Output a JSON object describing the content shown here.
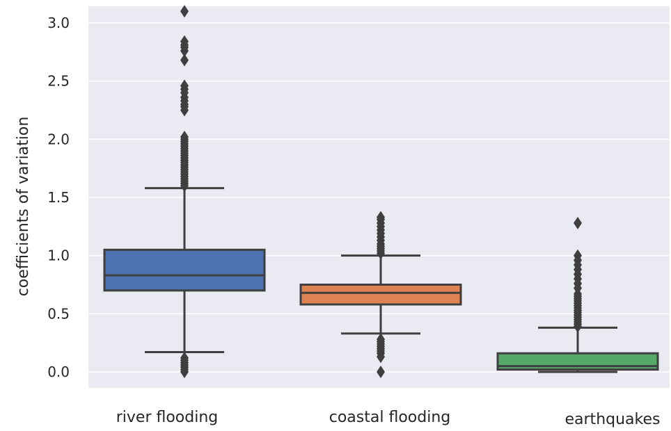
{
  "chart_data": {
    "type": "box",
    "title": "",
    "xlabel": "",
    "ylabel": "coefficients of variation",
    "ylim": [
      -0.15,
      3.25
    ],
    "yticks": [
      0.0,
      0.5,
      1.0,
      1.5,
      2.0,
      2.5,
      3.0
    ],
    "ytick_labels": [
      "0.0",
      "0.5",
      "1.0",
      "1.5",
      "2.0",
      "2.5",
      "3.0"
    ],
    "grid": true,
    "categories": [
      "river flooding",
      "coastal flooding",
      "earthquakes"
    ],
    "boxes": [
      {
        "category": "river flooding",
        "color": "#4c72b0",
        "whisker_low": 0.17,
        "q1": 0.7,
        "median": 0.83,
        "q3": 1.05,
        "whisker_high": 1.58,
        "outliers": [
          0.0,
          0.02,
          0.04,
          0.06,
          0.08,
          0.1,
          0.12,
          1.6,
          1.62,
          1.64,
          1.66,
          1.68,
          1.7,
          1.72,
          1.74,
          1.76,
          1.78,
          1.8,
          1.82,
          1.84,
          1.86,
          1.88,
          1.9,
          1.92,
          1.94,
          1.96,
          1.98,
          2.0,
          2.02,
          2.25,
          2.28,
          2.3,
          2.33,
          2.36,
          2.4,
          2.43,
          2.46,
          2.68,
          2.76,
          2.79,
          2.81,
          2.84,
          3.1
        ]
      },
      {
        "category": "coastal flooding",
        "color": "#dd8452",
        "whisker_low": 0.33,
        "q1": 0.58,
        "median": 0.68,
        "q3": 0.75,
        "whisker_high": 1.0,
        "outliers": [
          0.0,
          0.13,
          0.16,
          0.18,
          0.2,
          0.22,
          0.24,
          0.26,
          0.28,
          1.02,
          1.04,
          1.06,
          1.08,
          1.1,
          1.13,
          1.16,
          1.19,
          1.22,
          1.25,
          1.28,
          1.31,
          1.33
        ]
      },
      {
        "category": "earthquakes",
        "color": "#55a868",
        "whisker_low": 0.0,
        "q1": 0.02,
        "median": 0.05,
        "q3": 0.16,
        "whisker_high": 0.38,
        "outliers": [
          0.39,
          0.41,
          0.43,
          0.45,
          0.47,
          0.49,
          0.51,
          0.53,
          0.55,
          0.57,
          0.59,
          0.61,
          0.63,
          0.65,
          0.67,
          0.72,
          0.76,
          0.8,
          0.84,
          0.88,
          0.92,
          0.96,
          1.0,
          1.28
        ]
      }
    ]
  }
}
